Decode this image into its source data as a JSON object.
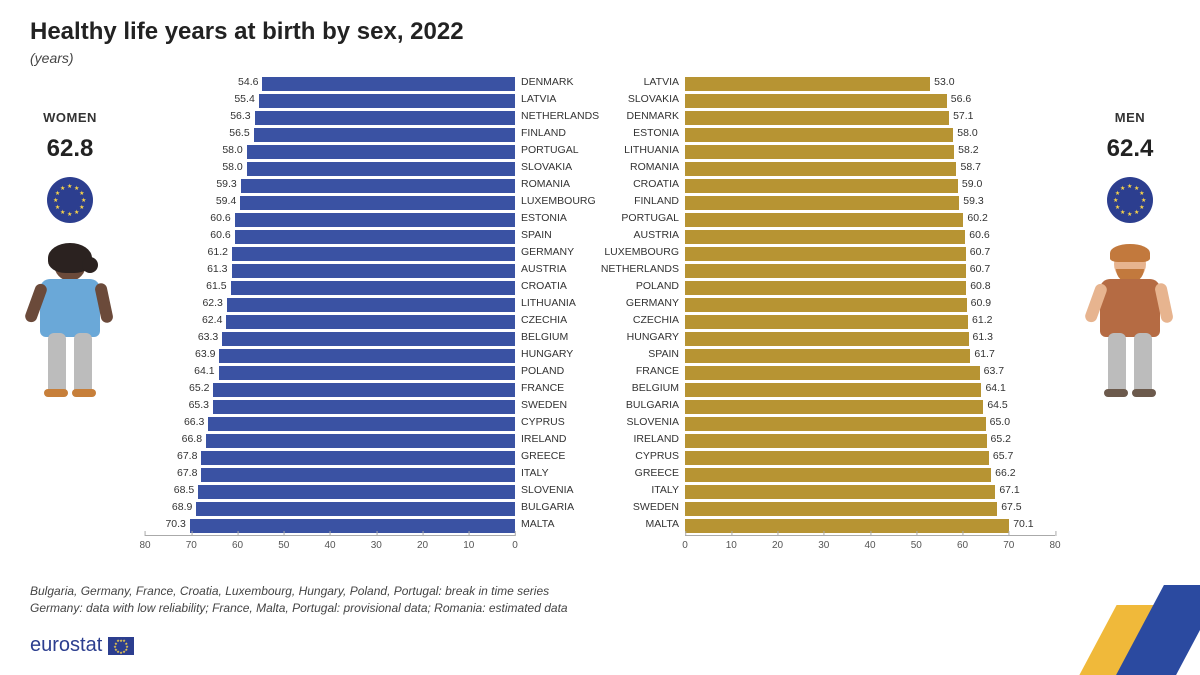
{
  "title": "Healthy life years at birth by sex, 2022",
  "subtitle": "(years)",
  "axis": {
    "min": 0,
    "max": 80,
    "step": 10
  },
  "women": {
    "label": "WOMEN",
    "eu_value": "62.8",
    "bar_color": "#3a52a3",
    "avatar": {
      "skin": "#6b4a3a",
      "hair": "#2b2220",
      "shirt": "#6aa8d8",
      "pants": "#bcbcbc",
      "shoes": "#c77f3a"
    },
    "rows": [
      {
        "c": "DENMARK",
        "v": 54.6
      },
      {
        "c": "LATVIA",
        "v": 55.4
      },
      {
        "c": "NETHERLANDS",
        "v": 56.3
      },
      {
        "c": "FINLAND",
        "v": 56.5
      },
      {
        "c": "PORTUGAL",
        "v": 58.0
      },
      {
        "c": "SLOVAKIA",
        "v": 58.0
      },
      {
        "c": "ROMANIA",
        "v": 59.3
      },
      {
        "c": "LUXEMBOURG",
        "v": 59.4
      },
      {
        "c": "ESTONIA",
        "v": 60.6
      },
      {
        "c": "SPAIN",
        "v": 60.6
      },
      {
        "c": "GERMANY",
        "v": 61.2
      },
      {
        "c": "AUSTRIA",
        "v": 61.3
      },
      {
        "c": "CROATIA",
        "v": 61.5
      },
      {
        "c": "LITHUANIA",
        "v": 62.3
      },
      {
        "c": "CZECHIA",
        "v": 62.4
      },
      {
        "c": "BELGIUM",
        "v": 63.3
      },
      {
        "c": "HUNGARY",
        "v": 63.9
      },
      {
        "c": "POLAND",
        "v": 64.1
      },
      {
        "c": "FRANCE",
        "v": 65.2
      },
      {
        "c": "SWEDEN",
        "v": 65.3
      },
      {
        "c": "CYPRUS",
        "v": 66.3
      },
      {
        "c": "IRELAND",
        "v": 66.8
      },
      {
        "c": "GREECE",
        "v": 67.8
      },
      {
        "c": "ITALY",
        "v": 67.8
      },
      {
        "c": "SLOVENIA",
        "v": 68.5
      },
      {
        "c": "BULGARIA",
        "v": 68.9
      },
      {
        "c": "MALTA",
        "v": 70.3
      }
    ]
  },
  "men": {
    "label": "MEN",
    "eu_value": "62.4",
    "bar_color": "#b79433",
    "avatar": {
      "skin": "#e7b48f",
      "hair": "#c2793d",
      "shirt": "#b56b43",
      "pants": "#bcbcbc",
      "shoes": "#6c5a4c"
    },
    "rows": [
      {
        "c": "LATVIA",
        "v": 53.0
      },
      {
        "c": "SLOVAKIA",
        "v": 56.6
      },
      {
        "c": "DENMARK",
        "v": 57.1
      },
      {
        "c": "ESTONIA",
        "v": 58.0
      },
      {
        "c": "LITHUANIA",
        "v": 58.2
      },
      {
        "c": "ROMANIA",
        "v": 58.7
      },
      {
        "c": "CROATIA",
        "v": 59.0
      },
      {
        "c": "FINLAND",
        "v": 59.3
      },
      {
        "c": "PORTUGAL",
        "v": 60.2
      },
      {
        "c": "AUSTRIA",
        "v": 60.6
      },
      {
        "c": "LUXEMBOURG",
        "v": 60.7
      },
      {
        "c": "NETHERLANDS",
        "v": 60.7
      },
      {
        "c": "POLAND",
        "v": 60.8
      },
      {
        "c": "GERMANY",
        "v": 60.9
      },
      {
        "c": "CZECHIA",
        "v": 61.2
      },
      {
        "c": "HUNGARY",
        "v": 61.3
      },
      {
        "c": "SPAIN",
        "v": 61.7
      },
      {
        "c": "FRANCE",
        "v": 63.7
      },
      {
        "c": "BELGIUM",
        "v": 64.1
      },
      {
        "c": "BULGARIA",
        "v": 64.5
      },
      {
        "c": "SLOVENIA",
        "v": 65.0
      },
      {
        "c": "IRELAND",
        "v": 65.2
      },
      {
        "c": "CYPRUS",
        "v": 65.7
      },
      {
        "c": "GREECE",
        "v": 66.2
      },
      {
        "c": "ITALY",
        "v": 67.1
      },
      {
        "c": "SWEDEN",
        "v": 67.5
      },
      {
        "c": "MALTA",
        "v": 70.1
      }
    ]
  },
  "footnote_line1": "Bulgaria, Germany, France, Croatia, Luxembourg, Hungary, Poland, Portugal: break in time series",
  "footnote_line2": "Germany: data with low reliability; France, Malta, Portugal: provisional data; Romania: estimated data",
  "brand": "eurostat",
  "eu_badge_bg": "#2c3e8f",
  "eu_star_color": "#f9d448"
}
